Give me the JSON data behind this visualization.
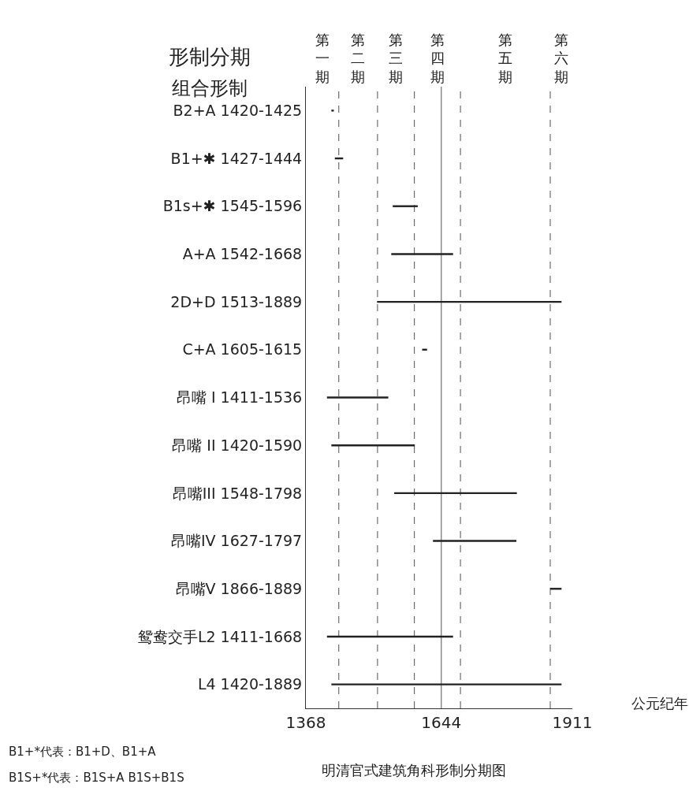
{
  "chart_data": {
    "type": "bar",
    "orientation": "horizontal",
    "title": "明清官式建筑角科形制分期图",
    "xlabel": "公元纪年",
    "categories": [
      "B2+A 1420-1425",
      "B1+✱ 1427-1444",
      "B1s+✱ 1545-1596",
      "A+A 1542-1668",
      "2D+D 1513-1889",
      "C+A 1605-1615",
      "昂嘴 I 1411-1536",
      "昂嘴 II 1420-1590",
      "昂嘴III 1548-1798",
      "昂嘴IV 1627-1797",
      "昂嘴V 1866-1889",
      "鸳鸯交手L2 1411-1668",
      "L4 1420-1889"
    ],
    "base": [
      1420,
      1427,
      1545,
      1542,
      1513,
      1605,
      1411,
      1420,
      1548,
      1627,
      1866,
      1411,
      1420
    ],
    "values": [
      5,
      17,
      51,
      126,
      376,
      10,
      125,
      170,
      250,
      170,
      23,
      257,
      469
    ],
    "color": "#222222",
    "xlim": [
      1368,
      1911
    ],
    "xticks": [
      1368,
      1644,
      1911
    ],
    "grid": false,
    "legend": false,
    "ref_lines": [
      {
        "axis": "x",
        "value": 1435,
        "line_style": "dashed"
      },
      {
        "axis": "x",
        "value": 1514,
        "line_style": "dashed"
      },
      {
        "axis": "x",
        "value": 1589,
        "line_style": "dashed"
      },
      {
        "axis": "x",
        "value": 1644,
        "line_style": "solid"
      },
      {
        "axis": "x",
        "value": 1683,
        "line_style": "dashed"
      },
      {
        "axis": "x",
        "value": 1866,
        "line_style": "dashed"
      }
    ],
    "bands": [
      {
        "axis": "x",
        "from": 1368,
        "to": 1435,
        "label": "第一期",
        "color": "#ffffff"
      },
      {
        "axis": "x",
        "from": 1435,
        "to": 1514,
        "label": "第二期",
        "color": "#ffffff"
      },
      {
        "axis": "x",
        "from": 1514,
        "to": 1589,
        "label": "第三期",
        "color": "#ffffff"
      },
      {
        "axis": "x",
        "from": 1589,
        "to": 1683,
        "label": "第四期",
        "color": "#ffffff"
      },
      {
        "axis": "x",
        "from": 1683,
        "to": 1866,
        "label": "第五期",
        "color": "#ffffff"
      },
      {
        "axis": "x",
        "from": 1866,
        "to": 1911,
        "label": "第六期",
        "color": "#ffffff"
      }
    ],
    "annotations": [
      "形制分期",
      "组合形制",
      "B1+*代表：B1+D、B1+A",
      "B1S+*代表：B1S+A B1S+B1S"
    ]
  }
}
